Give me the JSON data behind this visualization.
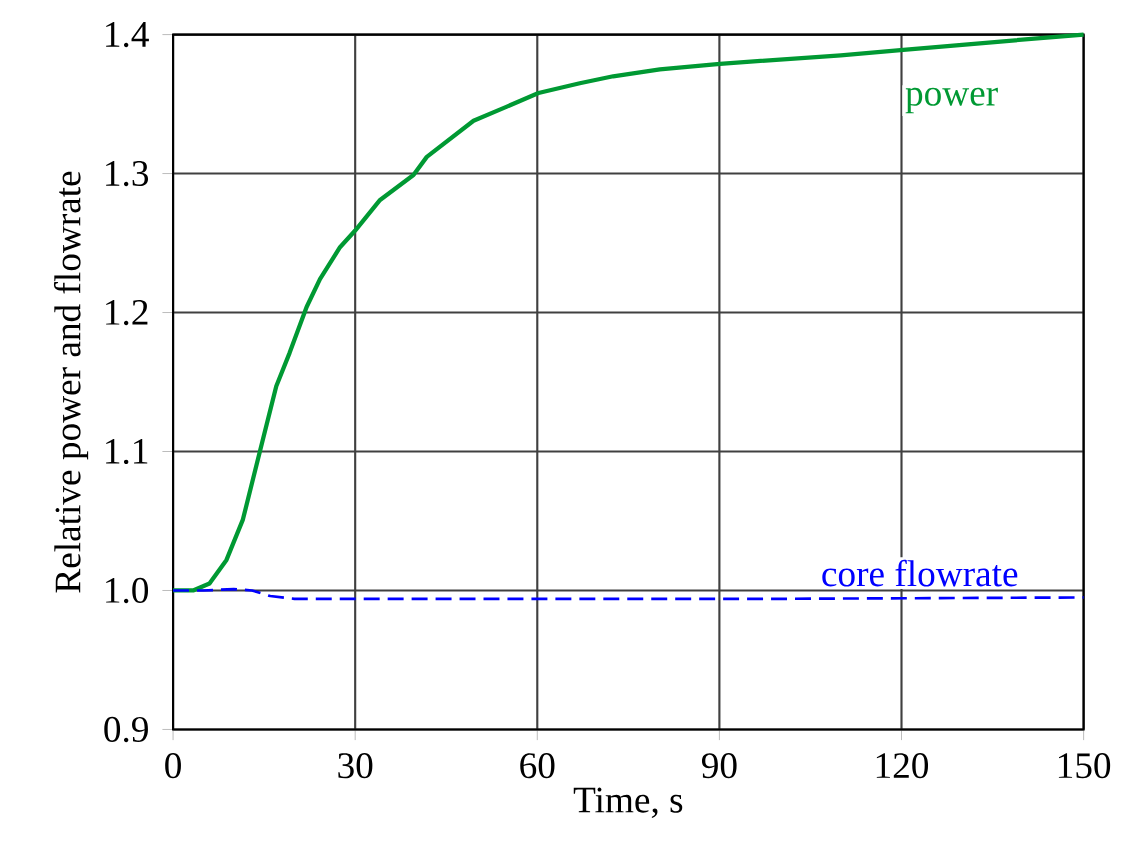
{
  "chart_data": {
    "type": "line",
    "xlabel": "Time, s",
    "ylabel": "Relative power and flowrate",
    "xlim": [
      0,
      150
    ],
    "ylim": [
      0.9,
      1.4
    ],
    "xticks": [
      0,
      30,
      60,
      90,
      120,
      150
    ],
    "yticks": [
      0.9,
      {
        "value": 1.0,
        "label": "1.0"
      },
      1.1,
      1.2,
      1.3,
      1.4
    ],
    "grid": true,
    "series": [
      {
        "name": "power",
        "color": "#009933",
        "line_style": "solid",
        "x": [
          0,
          3.3,
          6,
          8.8,
          11.5,
          14.3,
          17,
          19.2,
          22,
          24.2,
          27.5,
          30,
          34.1,
          39.6,
          41.8,
          49.5,
          54.9,
          60.2,
          67,
          72.5,
          80.2,
          90.1,
          110,
          120.3,
          136.3,
          150
        ],
        "values": [
          1.0,
          1.0,
          1.005,
          1.022,
          1.051,
          1.1,
          1.147,
          1.171,
          1.204,
          1.224,
          1.247,
          1.259,
          1.281,
          1.299,
          1.312,
          1.338,
          1.348,
          1.358,
          1.365,
          1.37,
          1.375,
          1.379,
          1.385,
          1.389,
          1.395,
          1.4
        ]
      },
      {
        "name": "core flowrate",
        "color": "#0000ff",
        "line_style": "dashed",
        "x": [
          0,
          5,
          10,
          13,
          16,
          20,
          60,
          100,
          150
        ],
        "values": [
          1.0,
          1.0,
          1.001,
          1.0,
          0.996,
          0.994,
          0.994,
          0.994,
          0.995
        ]
      }
    ]
  }
}
